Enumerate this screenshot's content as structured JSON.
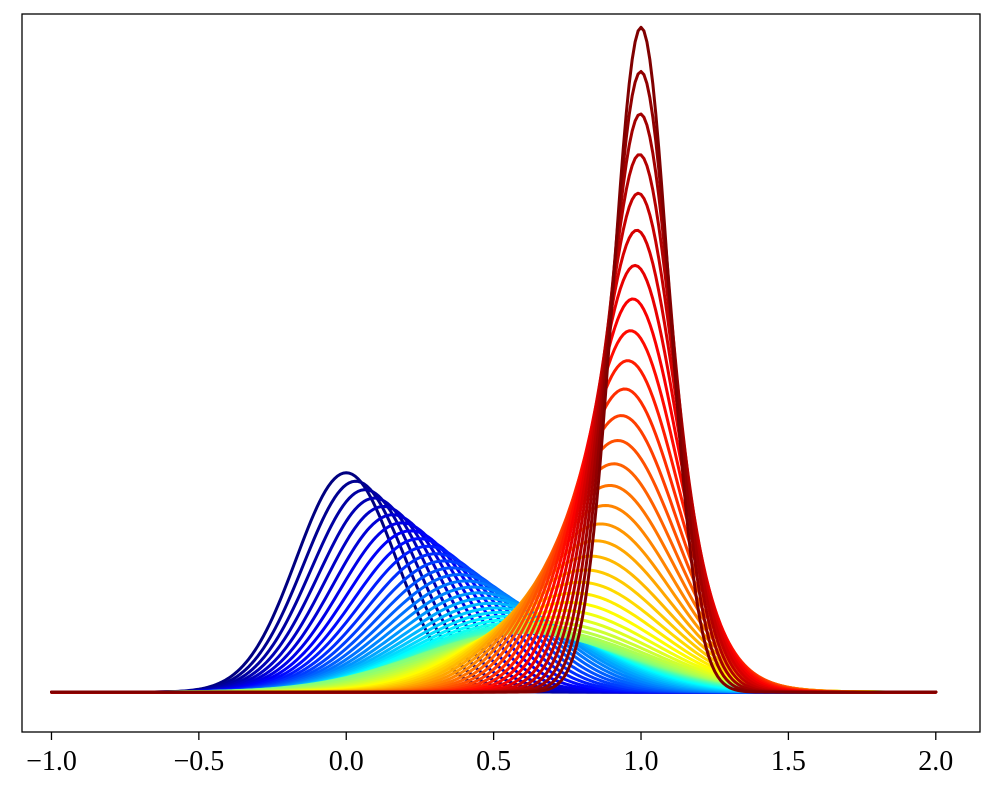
{
  "chart_data": {
    "type": "line",
    "title": "",
    "xlabel": "",
    "ylabel": "",
    "xlim": [
      -1.1,
      2.15
    ],
    "ylim": [
      -0.06,
      1.02
    ],
    "grid": false,
    "legend": "none",
    "y_ticks_shown": false,
    "x_ticks": [
      {
        "value": -1.0,
        "label": "−1.0"
      },
      {
        "value": -0.5,
        "label": "−0.5"
      },
      {
        "value": 0.0,
        "label": "0.0"
      },
      {
        "value": 0.5,
        "label": "0.5"
      },
      {
        "value": 1.0,
        "label": "1.0"
      },
      {
        "value": 1.5,
        "label": "1.5"
      },
      {
        "value": 2.0,
        "label": "2.0"
      }
    ],
    "x_range": [
      -1.0,
      2.0
    ],
    "curve_family": {
      "description_values": "Gaussian-like density curves morphing from a peak at x=0 (blue) to a peak at x=1 (dark red)",
      "count": 60,
      "start": {
        "center": 0.0,
        "sigma": 0.17,
        "peak_height": 0.33
      },
      "middle": {
        "center": 0.6,
        "sigma": 0.36,
        "peak_height": 0.09
      },
      "end": {
        "center": 1.0,
        "sigma": 0.095,
        "peak_height": 1.0
      },
      "colormap": "jet"
    }
  }
}
